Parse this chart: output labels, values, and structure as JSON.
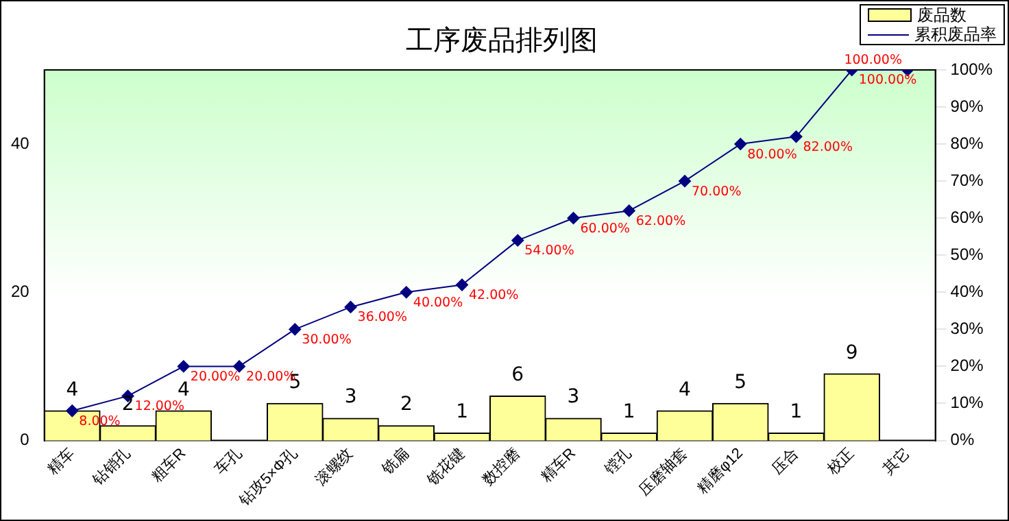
{
  "chart_data": {
    "type": "bar",
    "title": "工序废品排列图",
    "categories": [
      "精车",
      "钻销孔",
      "粗车R",
      "车孔",
      "钻攻5×Φ孔",
      "滚螺纹",
      "铣扁",
      "铣花键",
      "数控磨",
      "精车R",
      "镗孔",
      "压磨轴套",
      "精磨φ12",
      "压合",
      "校正",
      "其它"
    ],
    "series": [
      {
        "name": "废品数",
        "color": "#ffff99",
        "values": [
          4,
          2,
          4,
          0,
          5,
          3,
          2,
          1,
          6,
          3,
          1,
          4,
          5,
          1,
          9,
          0
        ],
        "value_labels": [
          "4",
          "2",
          "4",
          null,
          "5",
          "3",
          "2",
          "1",
          "6",
          "3",
          "1",
          "4",
          "5",
          "1",
          "9",
          null
        ]
      },
      {
        "name": "累积废品率",
        "type": "line",
        "axis": "y2",
        "color": "#000080",
        "marker": "diamond",
        "values": [
          8,
          12,
          20,
          20,
          30,
          36,
          40,
          42,
          54,
          60,
          62,
          70,
          80,
          82,
          100,
          100
        ],
        "value_labels": [
          "8.00%",
          "12.00%",
          "20.00%",
          "20.00%",
          "30.00%",
          "36.00%",
          "40.00%",
          "42.00%",
          "54.00%",
          "60.00%",
          "62.00%",
          "70.00%",
          "80.00%",
          "82.00%",
          "100.00%",
          "100.00%"
        ]
      }
    ],
    "ylim": [
      0,
      50
    ],
    "yticks": [
      0,
      20,
      40
    ],
    "y2lim": [
      0,
      100
    ],
    "y2ticks": [
      {
        "value": 0,
        "label": "0%"
      },
      {
        "value": 10,
        "label": "10%"
      },
      {
        "value": 20,
        "label": "20%"
      },
      {
        "value": 30,
        "label": "30%"
      },
      {
        "value": 40,
        "label": "40%"
      },
      {
        "value": 50,
        "label": "50%"
      },
      {
        "value": 60,
        "label": "60%"
      },
      {
        "value": 70,
        "label": "70%"
      },
      {
        "value": 80,
        "label": "80%"
      },
      {
        "value": 90,
        "label": "90%"
      },
      {
        "value": 100,
        "label": "100%"
      }
    ],
    "grid": false,
    "legend": "top right"
  }
}
